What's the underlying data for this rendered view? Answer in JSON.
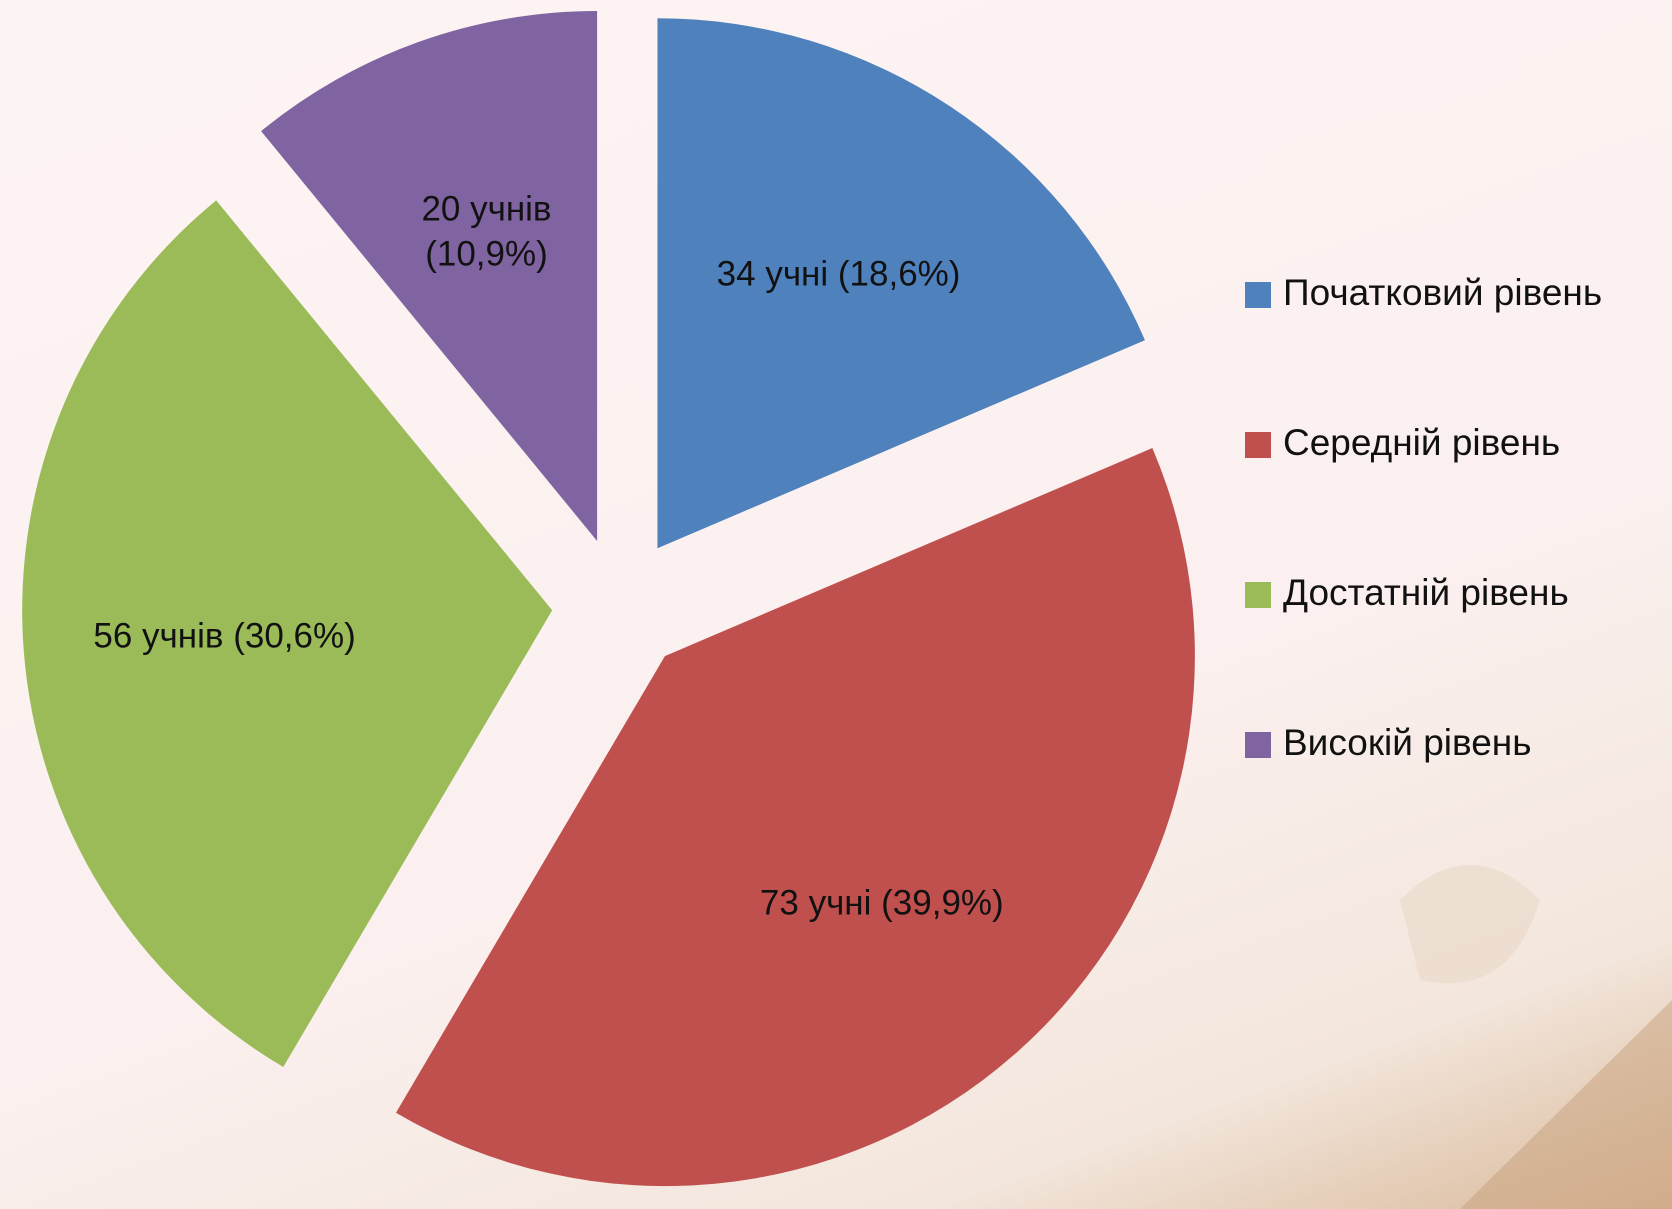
{
  "chart_data": {
    "type": "pie",
    "categories": [
      "Початковий рівень",
      "Середній рівень",
      "Достатній рівень",
      "Високій рівень"
    ],
    "values": [
      34,
      73,
      56,
      20
    ],
    "value_labels": [
      "34 учні (18,6%)",
      "73 учні (39,9%)",
      "56 учнів (30,6%)",
      "20 учнів (10,9%)"
    ],
    "colors": [
      "#4f81bd",
      "#c0504d",
      "#9bbb59",
      "#8064a2"
    ],
    "legend": "right"
  }
}
